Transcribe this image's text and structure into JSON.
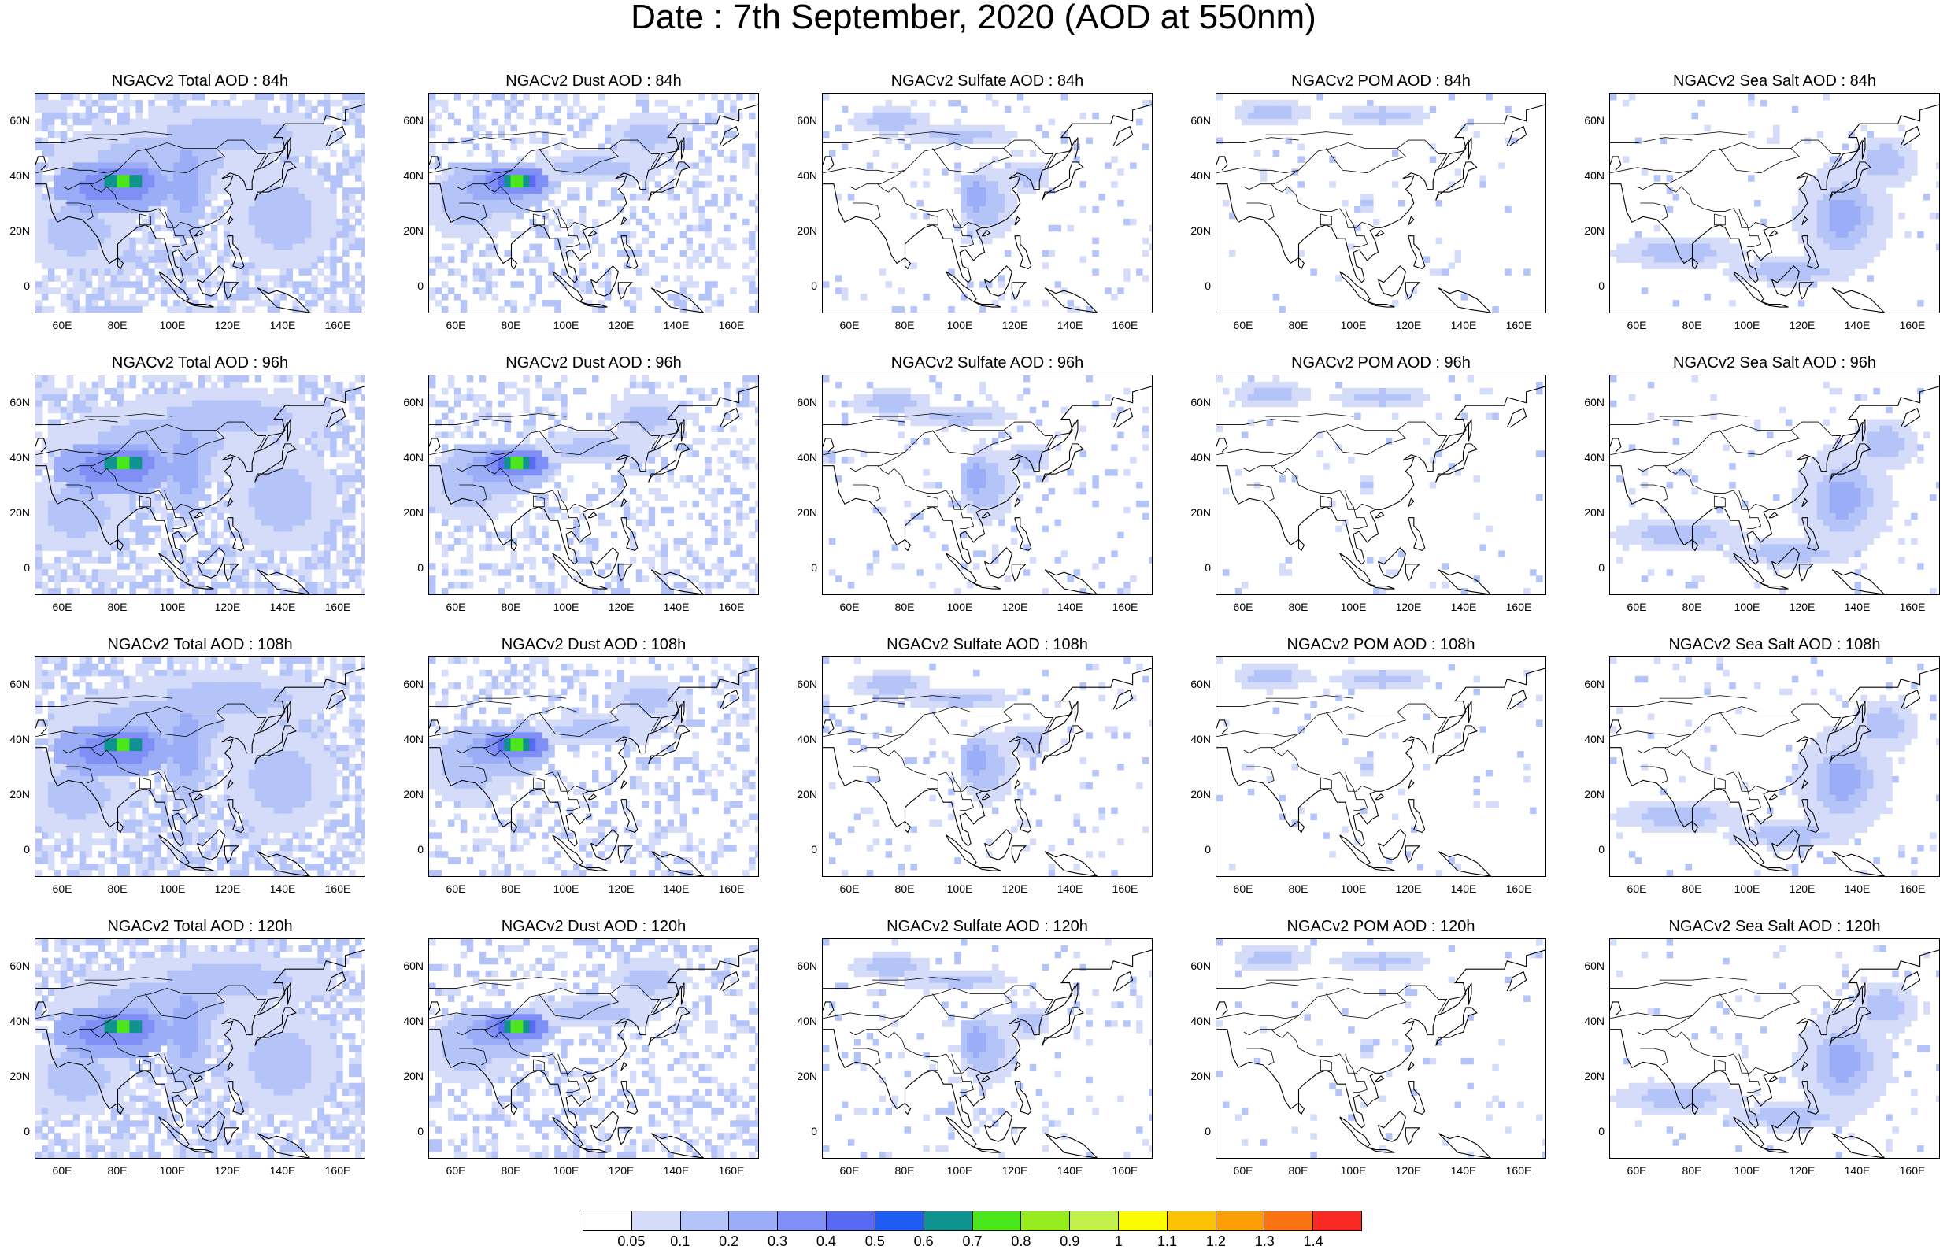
{
  "title": "Date : 7th September, 2020 (AOD at 550nm)",
  "rows": [
    {
      "panels": [
        {
          "title": "NGACv2 Total AOD : 84h",
          "field": "total"
        },
        {
          "title": "NGACv2 Dust AOD : 84h",
          "field": "dust"
        },
        {
          "title": "NGACv2 Sulfate AOD : 84h",
          "field": "sulfate"
        },
        {
          "title": "NGACv2 POM AOD : 84h",
          "field": "pom"
        },
        {
          "title": "NGACv2 Sea Salt AOD : 84h",
          "field": "seasalt"
        }
      ]
    },
    {
      "panels": [
        {
          "title": "NGACv2 Total AOD : 96h",
          "field": "total"
        },
        {
          "title": "NGACv2 Dust AOD : 96h",
          "field": "dust"
        },
        {
          "title": "NGACv2 Sulfate AOD : 96h",
          "field": "sulfate"
        },
        {
          "title": "NGACv2 POM AOD : 96h",
          "field": "pom"
        },
        {
          "title": "NGACv2 Sea Salt AOD : 96h",
          "field": "seasalt"
        }
      ]
    },
    {
      "panels": [
        {
          "title": "NGACv2 Total AOD : 108h",
          "field": "total"
        },
        {
          "title": "NGACv2 Dust AOD : 108h",
          "field": "dust"
        },
        {
          "title": "NGACv2 Sulfate AOD : 108h",
          "field": "sulfate"
        },
        {
          "title": "NGACv2 POM AOD : 108h",
          "field": "pom"
        },
        {
          "title": "NGACv2 Sea Salt AOD : 108h",
          "field": "seasalt"
        }
      ]
    },
    {
      "panels": [
        {
          "title": "NGACv2 Total AOD : 120h",
          "field": "total"
        },
        {
          "title": "NGACv2 Dust AOD : 120h",
          "field": "dust"
        },
        {
          "title": "NGACv2 Sulfate AOD : 120h",
          "field": "sulfate"
        },
        {
          "title": "NGACv2 POM AOD : 120h",
          "field": "pom"
        },
        {
          "title": "NGACv2 Sea Salt  AOD : 120h",
          "field": "seasalt"
        }
      ]
    }
  ],
  "lat_ticks": [
    "60N",
    "40N",
    "20N",
    "0"
  ],
  "lon_ticks": [
    "60E",
    "80E",
    "100E",
    "120E",
    "140E",
    "160E"
  ],
  "colorbar": {
    "colors": [
      "#ffffff",
      "#d4dcfa",
      "#b4c3f8",
      "#9aadf6",
      "#7f8ff5",
      "#5a6af0",
      "#1f5cf2",
      "#10938e",
      "#4be61c",
      "#96ec1e",
      "#c4f04c",
      "#fbfb02",
      "#fcc306",
      "#fd9e04",
      "#fa7511",
      "#f92a24"
    ],
    "labels": [
      "0.05",
      "0.1",
      "0.2",
      "0.3",
      "0.4",
      "0.5",
      "0.6",
      "0.7",
      "0.8",
      "0.9",
      "1",
      "1.1",
      "1.2",
      "1.3",
      "1.4"
    ]
  }
}
